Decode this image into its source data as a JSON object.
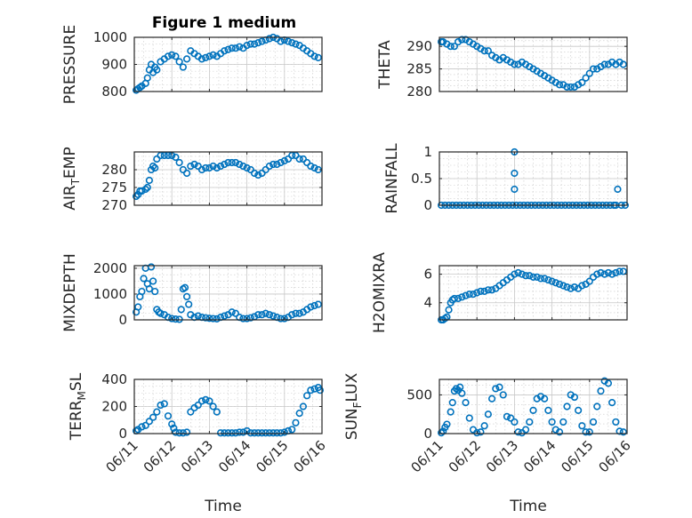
{
  "figure": {
    "title": "Figure 1 medium",
    "accent": "#0072BD"
  },
  "time_axis": {
    "tick_labels": [
      "06/11",
      "06/12",
      "06/13",
      "06/14",
      "06/15",
      "06/16"
    ],
    "xlabel": "Time"
  },
  "chart_data": [
    {
      "type": "scatter",
      "ylabel_parts": [
        "PRESSURE"
      ],
      "ylim": [
        800,
        1000
      ],
      "yticks": [
        800,
        900,
        1000
      ],
      "xlim": [
        0,
        5
      ],
      "x": [
        0.05,
        0.1,
        0.15,
        0.2,
        0.3,
        0.35,
        0.4,
        0.45,
        0.5,
        0.55,
        0.6,
        0.7,
        0.8,
        0.9,
        1.0,
        1.1,
        1.2,
        1.3,
        1.4,
        1.5,
        1.6,
        1.7,
        1.8,
        1.9,
        2.0,
        2.1,
        2.2,
        2.3,
        2.4,
        2.5,
        2.6,
        2.7,
        2.8,
        2.9,
        3.0,
        3.1,
        3.2,
        3.3,
        3.4,
        3.5,
        3.6,
        3.7,
        3.8,
        3.9,
        4.0,
        4.1,
        4.2,
        4.3,
        4.4,
        4.5,
        4.6,
        4.7,
        4.8,
        4.9
      ],
      "y": [
        805,
        810,
        815,
        820,
        830,
        850,
        880,
        900,
        870,
        890,
        880,
        910,
        920,
        930,
        935,
        930,
        910,
        890,
        920,
        950,
        940,
        930,
        920,
        925,
        930,
        935,
        930,
        940,
        950,
        955,
        960,
        960,
        965,
        960,
        970,
        975,
        975,
        980,
        985,
        990,
        995,
        1000,
        995,
        985,
        990,
        985,
        980,
        975,
        970,
        960,
        950,
        940,
        930,
        925
      ]
    },
    {
      "type": "scatter",
      "ylabel_parts": [
        "THETA"
      ],
      "ylim": [
        280,
        292
      ],
      "yticks": [
        280,
        285,
        290
      ],
      "xlim": [
        0,
        5
      ],
      "x": [
        0.05,
        0.1,
        0.2,
        0.3,
        0.4,
        0.5,
        0.6,
        0.7,
        0.8,
        0.9,
        1.0,
        1.1,
        1.2,
        1.3,
        1.4,
        1.5,
        1.6,
        1.7,
        1.8,
        1.9,
        2.0,
        2.1,
        2.2,
        2.3,
        2.4,
        2.5,
        2.6,
        2.7,
        2.8,
        2.9,
        3.0,
        3.1,
        3.2,
        3.3,
        3.4,
        3.5,
        3.6,
        3.7,
        3.8,
        3.9,
        4.0,
        4.1,
        4.2,
        4.3,
        4.4,
        4.5,
        4.6,
        4.7,
        4.8,
        4.9
      ],
      "y": [
        291,
        291,
        290.5,
        290,
        290,
        291,
        291.5,
        291.5,
        291,
        290.5,
        290,
        289.5,
        289,
        289,
        288,
        287.5,
        287,
        287.5,
        287,
        286.5,
        286,
        286,
        286.5,
        286,
        285.5,
        285,
        284.5,
        284,
        283.5,
        283,
        282.5,
        282,
        281.5,
        281.5,
        281,
        281,
        281,
        281.5,
        282,
        283,
        284,
        285,
        285,
        285.5,
        286,
        286,
        286.5,
        286,
        286.5,
        286
      ]
    },
    {
      "type": "scatter",
      "ylabel_parts": [
        "AIR",
        "T",
        "EMP"
      ],
      "ylim": [
        270,
        285
      ],
      "yticks": [
        270,
        275,
        280
      ],
      "xlim": [
        0,
        5
      ],
      "x": [
        0.05,
        0.1,
        0.15,
        0.2,
        0.3,
        0.35,
        0.4,
        0.45,
        0.5,
        0.55,
        0.6,
        0.7,
        0.8,
        0.9,
        1.0,
        1.1,
        1.2,
        1.3,
        1.4,
        1.5,
        1.6,
        1.7,
        1.8,
        1.9,
        2.0,
        2.1,
        2.2,
        2.3,
        2.4,
        2.5,
        2.6,
        2.7,
        2.8,
        2.9,
        3.0,
        3.1,
        3.2,
        3.3,
        3.4,
        3.5,
        3.6,
        3.7,
        3.8,
        3.9,
        4.0,
        4.1,
        4.2,
        4.3,
        4.4,
        4.5,
        4.6,
        4.7,
        4.8,
        4.9
      ],
      "y": [
        272.5,
        273,
        274,
        274,
        274.5,
        275,
        277,
        280,
        281,
        280.5,
        283,
        284,
        284,
        284,
        284,
        283.5,
        282,
        280,
        279,
        281,
        281.5,
        281,
        280,
        280.5,
        280.5,
        281,
        280.5,
        281,
        281.5,
        282,
        282,
        282,
        281.5,
        281,
        280.5,
        280,
        279,
        278.5,
        279,
        280,
        281,
        281.5,
        281.5,
        282,
        282.5,
        283,
        284,
        284,
        283,
        283,
        282,
        281,
        280.5,
        280
      ]
    },
    {
      "type": "scatter",
      "ylabel_parts": [
        "RAINFALL"
      ],
      "ylim": [
        0,
        1
      ],
      "yticks": [
        0,
        0.5,
        1
      ],
      "xlim": [
        0,
        5
      ],
      "x": [
        0.05,
        0.15,
        0.25,
        0.35,
        0.45,
        0.55,
        0.65,
        0.75,
        0.85,
        0.95,
        1.05,
        1.15,
        1.25,
        1.35,
        1.45,
        1.55,
        1.65,
        1.75,
        1.85,
        1.95,
        2.0,
        2.0,
        2.0,
        2.05,
        2.15,
        2.25,
        2.35,
        2.45,
        2.55,
        2.65,
        2.75,
        2.85,
        2.95,
        3.05,
        3.15,
        3.25,
        3.35,
        3.45,
        3.55,
        3.65,
        3.75,
        3.85,
        3.95,
        4.05,
        4.15,
        4.25,
        4.35,
        4.45,
        4.55,
        4.65,
        4.7,
        4.75,
        4.85,
        4.95
      ],
      "y": [
        0,
        0,
        0,
        0,
        0,
        0,
        0,
        0,
        0,
        0,
        0,
        0,
        0,
        0,
        0,
        0,
        0,
        0,
        0,
        0,
        0.3,
        0.6,
        1,
        0,
        0,
        0,
        0,
        0,
        0,
        0,
        0,
        0,
        0,
        0,
        0,
        0,
        0,
        0,
        0,
        0,
        0,
        0,
        0,
        0,
        0,
        0,
        0,
        0,
        0,
        0,
        0,
        0.3,
        0,
        0
      ]
    },
    {
      "type": "scatter",
      "ylabel_parts": [
        "MIXDEPTH"
      ],
      "ylim": [
        0,
        2100
      ],
      "yticks": [
        0,
        1000,
        2000
      ],
      "xlim": [
        0,
        5
      ],
      "x": [
        0.05,
        0.1,
        0.15,
        0.2,
        0.25,
        0.3,
        0.35,
        0.4,
        0.45,
        0.5,
        0.55,
        0.6,
        0.65,
        0.7,
        0.8,
        0.9,
        1.0,
        1.1,
        1.2,
        1.25,
        1.3,
        1.35,
        1.4,
        1.45,
        1.5,
        1.6,
        1.7,
        1.8,
        1.9,
        2.0,
        2.1,
        2.2,
        2.3,
        2.4,
        2.5,
        2.6,
        2.7,
        2.8,
        2.9,
        3.0,
        3.1,
        3.2,
        3.3,
        3.4,
        3.5,
        3.6,
        3.7,
        3.8,
        3.9,
        4.0,
        4.1,
        4.2,
        4.3,
        4.4,
        4.5,
        4.6,
        4.7,
        4.8,
        4.9
      ],
      "y": [
        300,
        500,
        900,
        1100,
        1600,
        2000,
        1400,
        1200,
        2050,
        1500,
        1100,
        400,
        300,
        250,
        200,
        100,
        50,
        30,
        20,
        400,
        1200,
        1250,
        900,
        600,
        200,
        100,
        150,
        100,
        80,
        60,
        50,
        40,
        100,
        150,
        200,
        300,
        250,
        100,
        50,
        50,
        80,
        120,
        200,
        200,
        250,
        200,
        150,
        100,
        50,
        50,
        100,
        200,
        250,
        250,
        300,
        400,
        500,
        550,
        600
      ]
    },
    {
      "type": "scatter",
      "ylabel_parts": [
        "H2OMIXRA"
      ],
      "ylim": [
        2.8,
        6.6
      ],
      "yticks": [
        4,
        6
      ],
      "xlim": [
        0,
        5
      ],
      "x": [
        0.05,
        0.1,
        0.15,
        0.2,
        0.25,
        0.3,
        0.35,
        0.4,
        0.5,
        0.6,
        0.7,
        0.8,
        0.9,
        1.0,
        1.1,
        1.2,
        1.3,
        1.4,
        1.5,
        1.6,
        1.7,
        1.8,
        1.9,
        2.0,
        2.1,
        2.2,
        2.3,
        2.4,
        2.5,
        2.6,
        2.7,
        2.8,
        2.9,
        3.0,
        3.1,
        3.2,
        3.3,
        3.4,
        3.5,
        3.6,
        3.7,
        3.8,
        3.9,
        4.0,
        4.1,
        4.2,
        4.3,
        4.4,
        4.5,
        4.6,
        4.7,
        4.8,
        4.9
      ],
      "y": [
        2.8,
        2.8,
        2.9,
        3.0,
        3.5,
        4.0,
        4.2,
        4.3,
        4.3,
        4.4,
        4.5,
        4.6,
        4.6,
        4.7,
        4.8,
        4.8,
        4.9,
        4.9,
        5.0,
        5.2,
        5.4,
        5.6,
        5.8,
        6.0,
        6.1,
        6.0,
        5.9,
        5.9,
        5.8,
        5.8,
        5.7,
        5.7,
        5.6,
        5.5,
        5.4,
        5.3,
        5.2,
        5.1,
        5.0,
        5.1,
        5.0,
        5.2,
        5.3,
        5.5,
        5.8,
        6.0,
        6.1,
        6.0,
        6.1,
        6.0,
        6.1,
        6.2,
        6.2
      ]
    },
    {
      "type": "scatter",
      "ylabel_parts": [
        "TERR",
        "M",
        "SL"
      ],
      "ylim": [
        0,
        400
      ],
      "yticks": [
        0,
        200,
        400
      ],
      "xlim": [
        0,
        5
      ],
      "x": [
        0.05,
        0.1,
        0.2,
        0.3,
        0.4,
        0.5,
        0.6,
        0.7,
        0.8,
        0.9,
        1.0,
        1.05,
        1.1,
        1.2,
        1.3,
        1.4,
        1.5,
        1.6,
        1.7,
        1.8,
        1.9,
        2.0,
        2.1,
        2.2,
        2.3,
        2.4,
        2.5,
        2.6,
        2.7,
        2.8,
        2.9,
        3.0,
        3.1,
        3.2,
        3.3,
        3.4,
        3.5,
        3.6,
        3.7,
        3.8,
        3.9,
        4.0,
        4.1,
        4.2,
        4.3,
        4.4,
        4.5,
        4.6,
        4.7,
        4.8,
        4.9,
        4.95
      ],
      "y": [
        20,
        30,
        50,
        60,
        90,
        120,
        160,
        210,
        220,
        130,
        70,
        40,
        10,
        5,
        5,
        10,
        160,
        190,
        210,
        240,
        250,
        240,
        200,
        160,
        5,
        5,
        5,
        5,
        5,
        10,
        10,
        20,
        5,
        5,
        5,
        5,
        5,
        5,
        5,
        5,
        5,
        10,
        20,
        30,
        80,
        150,
        200,
        280,
        320,
        330,
        340,
        320
      ]
    },
    {
      "type": "scatter",
      "ylabel_parts": [
        "SUN",
        "F",
        "LUX"
      ],
      "ylim": [
        0,
        700
      ],
      "yticks": [
        0,
        500
      ],
      "xlim": [
        0,
        5
      ],
      "x": [
        0.05,
        0.1,
        0.15,
        0.2,
        0.3,
        0.35,
        0.4,
        0.45,
        0.5,
        0.55,
        0.6,
        0.7,
        0.8,
        0.9,
        1.0,
        1.1,
        1.2,
        1.3,
        1.4,
        1.5,
        1.6,
        1.7,
        1.8,
        1.9,
        2.0,
        2.1,
        2.2,
        2.3,
        2.4,
        2.5,
        2.6,
        2.7,
        2.8,
        2.9,
        3.0,
        3.1,
        3.2,
        3.3,
        3.4,
        3.5,
        3.6,
        3.7,
        3.8,
        3.9,
        4.0,
        4.1,
        4.2,
        4.3,
        4.4,
        4.5,
        4.6,
        4.7,
        4.8,
        4.9
      ],
      "y": [
        10,
        30,
        80,
        120,
        280,
        400,
        550,
        580,
        560,
        600,
        520,
        400,
        200,
        50,
        10,
        20,
        100,
        250,
        450,
        580,
        600,
        500,
        220,
        200,
        150,
        20,
        10,
        50,
        150,
        300,
        450,
        480,
        450,
        300,
        150,
        50,
        20,
        150,
        350,
        500,
        470,
        300,
        100,
        20,
        20,
        150,
        350,
        550,
        680,
        650,
        400,
        150,
        30,
        20
      ]
    }
  ]
}
